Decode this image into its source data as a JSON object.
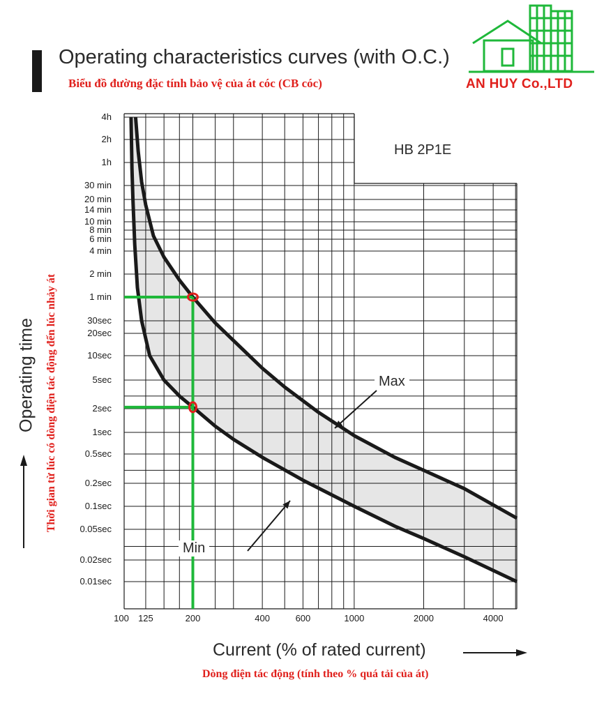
{
  "header": {
    "title": "Operating characteristics curves (with O.C.)",
    "subtitle_vn": "Biểu đồ đường đặc tính bảo vệ của át cóc (CB cóc)",
    "brand": "AN HUY Co.,LTD"
  },
  "colors": {
    "curve": "#1a1a1a",
    "band_fill": "#e6e6e6",
    "grid": "#1a1a1a",
    "highlight_line": "#1fb83a",
    "highlight_marker": "#e0201c",
    "vn_text": "#e0201c",
    "logo": "#1fb83a"
  },
  "logo_icon": "house-and-building-icon",
  "chart_data": {
    "type": "line",
    "model": "HB 2P1E",
    "xlabel": "Current (% of rated current)",
    "xlabel_vn": "Dòng điện tác động (tính theo % quá tải của át)",
    "ylabel": "Operating time",
    "ylabel_vn": "Thời gian từ lúc có dòng điện tác động đến lúc nhảy át",
    "xscale": "log",
    "yscale": "log",
    "xlim": [
      100,
      5500
    ],
    "x_ticks": [
      {
        "label": "100",
        "value": 100
      },
      {
        "label": "125",
        "value": 125
      },
      {
        "label": "200",
        "value": 200
      },
      {
        "label": "400",
        "value": 400
      },
      {
        "label": "600",
        "value": 600
      },
      {
        "label": "1000",
        "value": 1000
      },
      {
        "label": "2000",
        "value": 2000
      },
      {
        "label": "4000",
        "value": 4000
      }
    ],
    "y_ticks": [
      {
        "label": "4h",
        "seconds": 14400
      },
      {
        "label": "2h",
        "seconds": 7200
      },
      {
        "label": "1h",
        "seconds": 3600
      },
      {
        "label": "30 min",
        "seconds": 1800
      },
      {
        "label": "20 min",
        "seconds": 1200
      },
      {
        "label": "14 min",
        "seconds": 840
      },
      {
        "label": "10 min",
        "seconds": 600
      },
      {
        "label": "8 min",
        "seconds": 480
      },
      {
        "label": "6 min",
        "seconds": 360
      },
      {
        "label": "4 min",
        "seconds": 240
      },
      {
        "label": "2 min",
        "seconds": 120
      },
      {
        "label": "1 min",
        "seconds": 60
      },
      {
        "label": "30sec",
        "seconds": 30
      },
      {
        "label": "20sec",
        "seconds": 20
      },
      {
        "label": "10sec",
        "seconds": 10
      },
      {
        "label": "5sec",
        "seconds": 5
      },
      {
        "label": "2sec",
        "seconds": 2
      },
      {
        "label": "1sec",
        "seconds": 1
      },
      {
        "label": "0.5sec",
        "seconds": 0.5
      },
      {
        "label": "0.2sec",
        "seconds": 0.2
      },
      {
        "label": "0.1sec",
        "seconds": 0.1
      },
      {
        "label": "0.05sec",
        "seconds": 0.05
      },
      {
        "label": "0.02sec",
        "seconds": 0.02
      },
      {
        "label": "0.01sec",
        "seconds": 0.01
      }
    ],
    "series": [
      {
        "name": "Max",
        "x": [
          113,
          116,
          120,
          125,
          135,
          150,
          175,
          200,
          250,
          300,
          400,
          500,
          700,
          1000,
          1500,
          2000,
          3000,
          5500
        ],
        "y": [
          14400,
          5000,
          2000,
          1000,
          400,
          200,
          100,
          60,
          28,
          16,
          7,
          4,
          1.8,
          0.9,
          0.45,
          0.3,
          0.17,
          0.07
        ]
      },
      {
        "name": "Min",
        "x": [
          108,
          109,
          110,
          112,
          115,
          120,
          130,
          150,
          175,
          200,
          250,
          300,
          400,
          600,
          1000,
          1500,
          2000,
          3000,
          5500
        ],
        "y": [
          14400,
          3000,
          1200,
          300,
          80,
          30,
          10,
          5,
          3,
          2.1,
          1.2,
          0.8,
          0.45,
          0.22,
          0.1,
          0.055,
          0.038,
          0.022,
          0.01
        ]
      }
    ],
    "annotations": [
      {
        "text": "Max",
        "points_to": "Max"
      },
      {
        "text": "Min",
        "points_to": "Min"
      }
    ],
    "highlight": {
      "x": 200,
      "y_max_curve": 60,
      "y_min_curve": 2.1
    }
  }
}
